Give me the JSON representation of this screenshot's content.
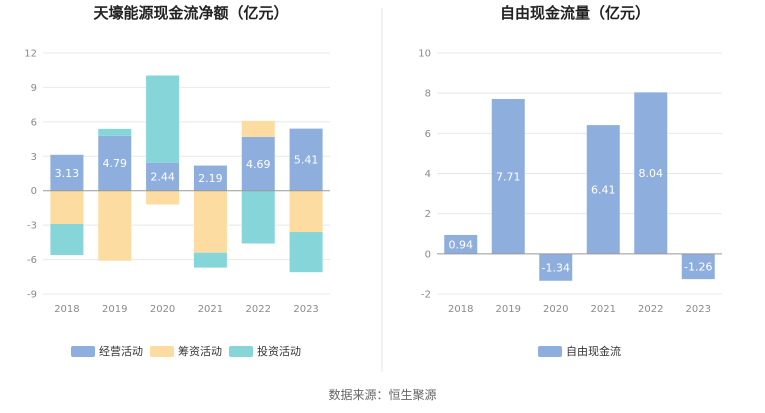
{
  "source_text": "数据来源：恒生聚源",
  "colors": {
    "operating": "#8eaedd",
    "financing": "#fddca1",
    "investing": "#86d6d9",
    "fcf": "#8eaedd",
    "grid": "#e8e8e8",
    "axis": "#999999",
    "divider": "#e6e6e6"
  },
  "chart_data": [
    {
      "type": "bar",
      "stacked": true,
      "title": "天壕能源现金流净额（亿元）",
      "categories": [
        "2018",
        "2019",
        "2020",
        "2021",
        "2022",
        "2023"
      ],
      "ylim": [
        -9,
        12
      ],
      "yticks": [
        -9,
        -6,
        -3,
        0,
        3,
        6,
        9,
        12
      ],
      "grid": true,
      "legend_position": "bottom",
      "series": [
        {
          "name": "经营活动",
          "values": [
            3.13,
            4.79,
            2.44,
            2.19,
            4.69,
            5.41
          ],
          "labels": [
            "3.13",
            "4.79",
            "2.44",
            "2.19",
            "4.69",
            "5.41"
          ]
        },
        {
          "name": "筹资活动",
          "values": [
            -2.9,
            -6.1,
            -1.2,
            -5.4,
            1.4,
            -3.6
          ]
        },
        {
          "name": "投资活动",
          "values": [
            -2.7,
            0.6,
            7.6,
            -1.3,
            -4.6,
            -3.5
          ]
        }
      ]
    },
    {
      "type": "bar",
      "title": "自由现金流量（亿元）",
      "categories": [
        "2018",
        "2019",
        "2020",
        "2021",
        "2022",
        "2023"
      ],
      "ylim": [
        -2,
        10
      ],
      "yticks": [
        -2,
        0,
        2,
        4,
        6,
        8,
        10
      ],
      "grid": true,
      "legend_position": "bottom",
      "series": [
        {
          "name": "自由现金流",
          "values": [
            0.94,
            7.71,
            -1.34,
            6.41,
            8.04,
            -1.26
          ],
          "labels": [
            "0.94",
            "7.71",
            "-1.34",
            "6.41",
            "8.04",
            "-1.26"
          ]
        }
      ]
    }
  ]
}
